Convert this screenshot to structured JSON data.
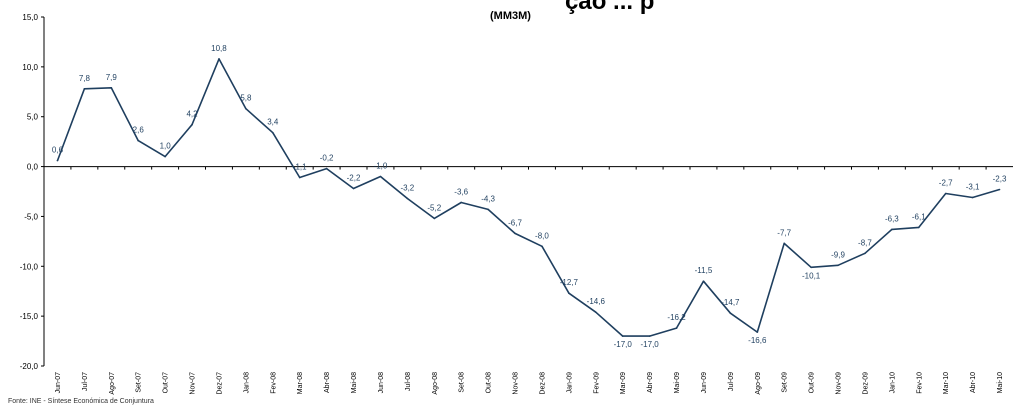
{
  "chart_data": {
    "type": "line",
    "title": "ção ... p",
    "subtitle": "(MM3M)",
    "source": "Fonte: INE - Síntese Económica de Conjuntura",
    "ylim": [
      -20,
      15
    ],
    "yticks": [
      "15,0",
      "10,0",
      "5,0",
      "0,0",
      "-5,0",
      "-10,0",
      "-15,0",
      "-20,0"
    ],
    "ytick_values": [
      15,
      10,
      5,
      0,
      -5,
      -10,
      -15,
      -20
    ],
    "grid": false,
    "line_color": "#1f3f5f",
    "label_color": "#1f3f5f",
    "categories": [
      "Jun-07",
      "Jul-07",
      "Ago-07",
      "Set-07",
      "Out-07",
      "Nov-07",
      "Dez-07",
      "Jan-08",
      "Fev-08",
      "Mar-08",
      "Abr-08",
      "Mai-08",
      "Jun-08",
      "Jul-08",
      "Ago-08",
      "Set-08",
      "Out-08",
      "Nov-08",
      "Dez-08",
      "Jan-09",
      "Fev-09",
      "Mar-09",
      "Abr-09",
      "Mai-09",
      "Jun-09",
      "Jul-09",
      "Ago-09",
      "Set-09",
      "Out-09",
      "Nov-09",
      "Dez-09",
      "Jan-10",
      "Fev-10",
      "Mar-10",
      "Abr-10",
      "Mai-10"
    ],
    "series": [
      {
        "values": [
          0.6,
          7.8,
          7.9,
          2.6,
          1.0,
          4.2,
          10.8,
          5.8,
          3.4,
          -1.1,
          -0.2,
          -2.2,
          -1.0,
          -3.2,
          -5.2,
          -3.6,
          -4.3,
          -6.7,
          -8.0,
          -12.7,
          -14.6,
          -17.0,
          -17.0,
          -16.2,
          -11.5,
          -14.7,
          -16.6,
          -7.7,
          -10.1,
          -9.9,
          -8.7,
          -6.3,
          -6.1,
          -2.7,
          -3.1,
          -2.3
        ],
        "labels": [
          "0,6",
          "7,8",
          "7,9",
          "2,6",
          "1,0",
          "4,2",
          "10,8",
          "5,8",
          "3,4",
          "-1,1",
          "-0,2",
          "-2,2",
          "-1,0",
          "-3,2",
          "-5,2",
          "-3,6",
          "-4,3",
          "-6,7",
          "-8,0",
          "-12,7",
          "-14,6",
          "-17,0",
          "-17,0",
          "-16,2",
          "-11,5",
          "-14,7",
          "-16,6",
          "-7,7",
          "-10,1",
          "-9,9",
          "-8,7",
          "-6,3",
          "-6,1",
          "-2,7",
          "-3,1",
          "-2,3"
        ]
      }
    ]
  }
}
